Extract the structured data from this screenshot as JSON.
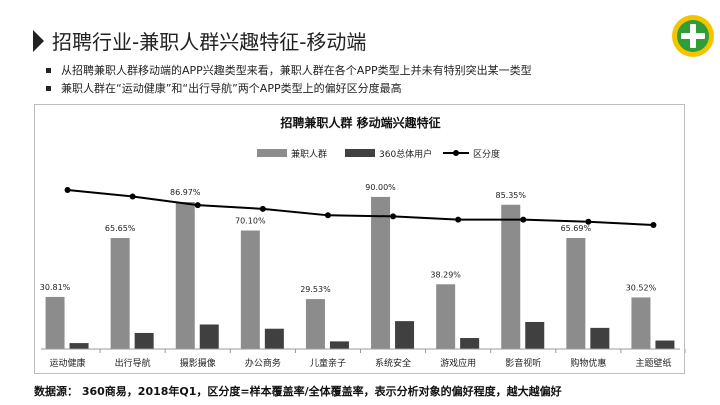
{
  "header": {
    "title": "招聘行业-兼职人群兴趣特征-移动端"
  },
  "bullets": [
    "从招聘兼职人群移动端的APP兴趣类型来看，兼职人群在各个APP类型上并未有特别突出某一类型",
    "兼职人群在“运动健康”和“出行导航”两个APP类型上的偏好区分度最高"
  ],
  "footnote": "数据源： 360商易，2018年Q1，区分度=样本覆盖率/全体覆盖率，表示分析对象的偏好程度，越大越偏好",
  "logo": {
    "icon": "plus-logo-icon",
    "colors": {
      "outer": "#f5c400",
      "inner": "#2e9e37",
      "plus": "#ffffff"
    }
  },
  "chart_data": {
    "type": "bar",
    "title": "招聘兼职人群 移动端兴趣特征",
    "categories": [
      "运动健康",
      "出行导航",
      "摄影摄像",
      "办公商务",
      "儿童亲子",
      "系统安全",
      "游戏应用",
      "影音视听",
      "购物优惠",
      "主题壁纸"
    ],
    "series": [
      {
        "name": "兼职人群",
        "type": "bar",
        "color": "#8c8c8c",
        "values": [
          30.81,
          65.65,
          86.97,
          70.1,
          29.53,
          90.0,
          38.29,
          85.35,
          65.69,
          30.52
        ],
        "labels": [
          "30.81%",
          "65.65%",
          "86.97%",
          "70.10%",
          "29.53%",
          "90.00%",
          "38.29%",
          "85.35%",
          "65.69%",
          "30.52%"
        ]
      },
      {
        "name": "360总体用户",
        "type": "bar",
        "color": "#404040",
        "values": [
          3.5,
          9.5,
          14.5,
          12.0,
          4.5,
          16.5,
          6.5,
          16.0,
          12.5,
          5.0
        ]
      },
      {
        "name": "区分度",
        "type": "line",
        "color": "#000000",
        "values": [
          8.8,
          7.6,
          6.0,
          5.3,
          4.1,
          3.9,
          3.3,
          3.3,
          2.9,
          2.3
        ]
      }
    ],
    "legend_position": "top-center",
    "ylim": [
      0,
      100
    ],
    "grid": false
  }
}
